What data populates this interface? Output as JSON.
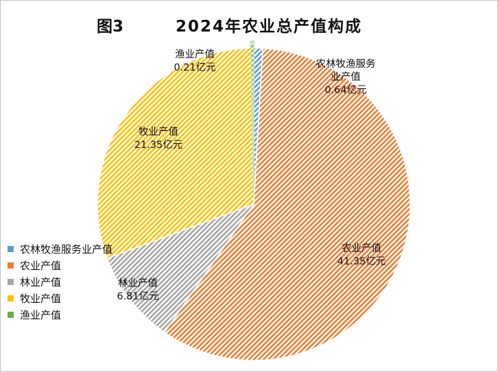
{
  "chart_data": {
    "type": "pie",
    "title_prefix": "图3",
    "title": "2024年农业总产值构成",
    "unit": "亿元",
    "legend_position": "left-bottom",
    "series": [
      {
        "name": "农林牧渔服务业产值",
        "value": 0.64,
        "color": "#5b9bd5",
        "label_lines": [
          "农林牧渔服务",
          "业产值",
          "0.64亿元"
        ]
      },
      {
        "name": "农业产值",
        "value": 41.35,
        "color": "#ed7d31",
        "label_lines": [
          "农业产值",
          "41.35亿元"
        ]
      },
      {
        "name": "林业产值",
        "value": 6.81,
        "color": "#a5a5a5",
        "label_lines": [
          "林业产值",
          "6.81亿元"
        ]
      },
      {
        "name": "牧业产值",
        "value": 21.35,
        "color": "#ffc000",
        "label_lines": [
          "牧业产值",
          "21.35亿元"
        ]
      },
      {
        "name": "渔业产值",
        "value": 0.21,
        "color": "#70ad47",
        "label_lines": [
          "渔业产值",
          "0.21亿元"
        ]
      }
    ]
  }
}
